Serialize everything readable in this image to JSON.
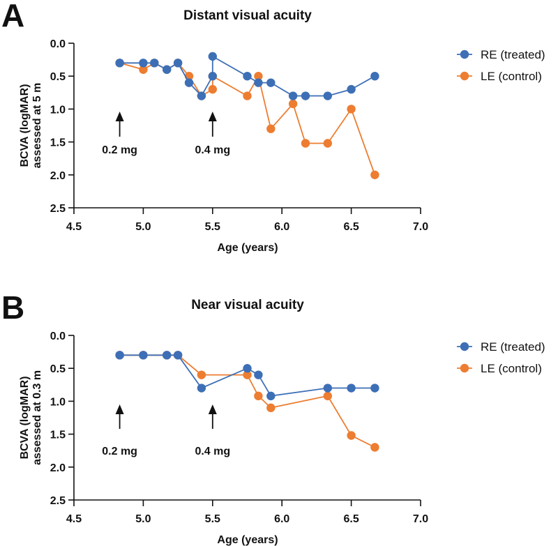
{
  "colors": {
    "series_re": "#3d6fb6",
    "series_le": "#ed7d31",
    "axis": "#111111"
  },
  "chart_data": [
    {
      "type": "line",
      "panel": "A",
      "title": "Distant visual acuity",
      "xlabel": "Age (years)",
      "ylabel": [
        "BCVA (logMAR)",
        "assessed at 5 m"
      ],
      "xlim": [
        4.5,
        7.0
      ],
      "ylim": [
        0.0,
        2.5
      ],
      "y_inverted": true,
      "xticks": [
        "4.5",
        "5.0",
        "5.5",
        "6.0",
        "6.5",
        "7.0"
      ],
      "yticks": [
        "0.0",
        "0.5",
        "1.0",
        "1.5",
        "2.0",
        "2.5"
      ],
      "grid": false,
      "legend": "right",
      "annotations": [
        {
          "x": 4.83,
          "label": "0.2 mg"
        },
        {
          "x": 5.5,
          "label": "0.4 mg"
        }
      ],
      "series": [
        {
          "name": "RE (treated)",
          "color": "#3d6fb6",
          "x": [
            4.83,
            5.0,
            5.08,
            5.17,
            5.25,
            5.33,
            5.42,
            5.5,
            5.5,
            5.75,
            5.83,
            5.92,
            6.08,
            6.17,
            6.33,
            6.5,
            6.67
          ],
          "y": [
            0.3,
            0.3,
            0.3,
            0.4,
            0.3,
            0.6,
            0.8,
            0.5,
            0.2,
            0.5,
            0.6,
            0.6,
            0.8,
            0.8,
            0.8,
            0.7,
            0.5
          ]
        },
        {
          "name": "LE (control)",
          "color": "#ed7d31",
          "x": [
            4.83,
            5.0,
            5.08,
            5.17,
            5.25,
            5.33,
            5.42,
            5.5,
            5.5,
            5.75,
            5.83,
            5.92,
            6.08,
            6.17,
            6.33,
            6.5,
            6.67
          ],
          "y": [
            0.3,
            0.4,
            0.3,
            0.4,
            0.3,
            0.5,
            0.8,
            0.7,
            0.5,
            0.8,
            0.5,
            1.3,
            0.92,
            1.52,
            1.52,
            1.0,
            2.0
          ]
        }
      ]
    },
    {
      "type": "line",
      "panel": "B",
      "title": "Near visual acuity",
      "xlabel": "Age (years)",
      "ylabel": [
        "BCVA (logMAR)",
        "assessed at 0.3 m"
      ],
      "xlim": [
        4.5,
        7.0
      ],
      "ylim": [
        0.0,
        2.5
      ],
      "y_inverted": true,
      "xticks": [
        "4.5",
        "5.0",
        "5.5",
        "6.0",
        "6.5",
        "7.0"
      ],
      "yticks": [
        "0.0",
        "0.5",
        "1.0",
        "1.5",
        "2.0",
        "2.5"
      ],
      "grid": false,
      "legend": "right",
      "annotations": [
        {
          "x": 4.83,
          "label": "0.2 mg"
        },
        {
          "x": 5.5,
          "label": "0.4 mg"
        }
      ],
      "series": [
        {
          "name": "RE (treated)",
          "color": "#3d6fb6",
          "x": [
            4.83,
            5.0,
            5.17,
            5.25,
            5.42,
            5.75,
            5.83,
            5.92,
            6.33,
            6.5,
            6.67
          ],
          "y": [
            0.3,
            0.3,
            0.3,
            0.3,
            0.8,
            0.5,
            0.6,
            0.92,
            0.8,
            0.8,
            0.8
          ]
        },
        {
          "name": "LE (control)",
          "color": "#ed7d31",
          "x": [
            4.83,
            5.0,
            5.17,
            5.25,
            5.42,
            5.75,
            5.83,
            5.92,
            6.33,
            6.5,
            6.67
          ],
          "y": [
            0.3,
            0.3,
            0.3,
            0.3,
            0.6,
            0.6,
            0.92,
            1.1,
            0.92,
            1.52,
            1.7
          ]
        }
      ]
    }
  ]
}
